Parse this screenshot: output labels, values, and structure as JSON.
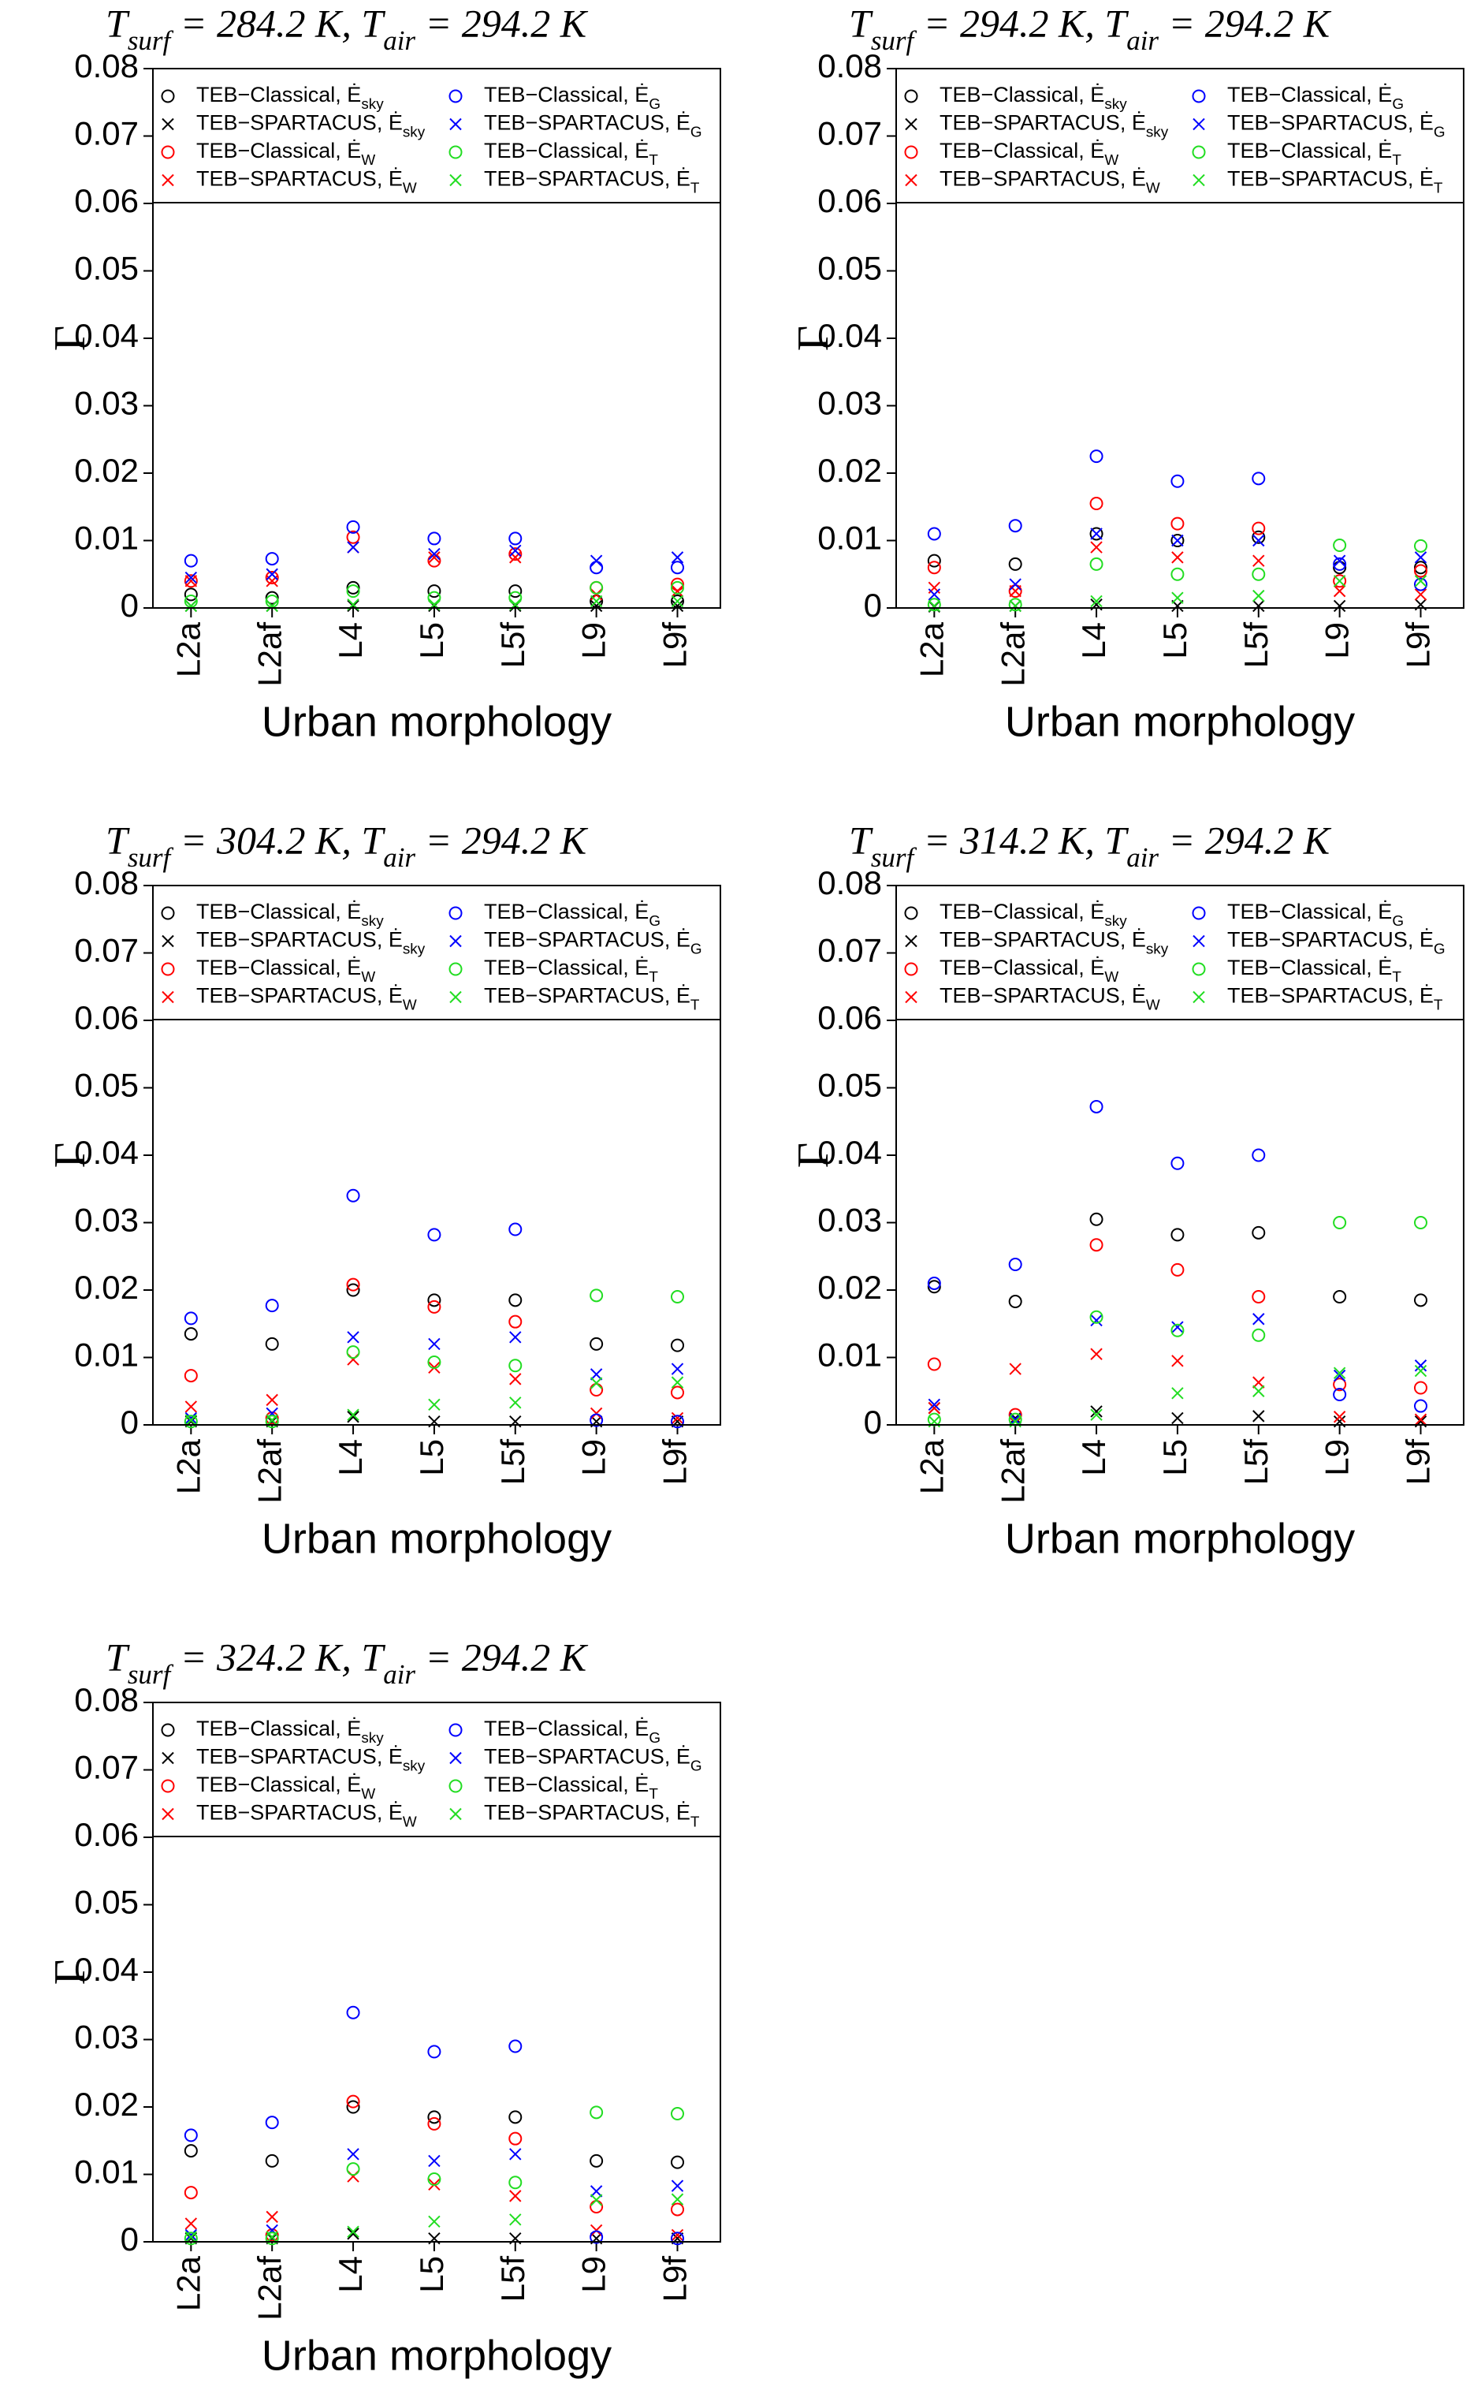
{
  "chart_data": [
    {
      "type": "scatter",
      "title": "T_surf = 284.2 K, T_air = 294.2 K",
      "xlabel": "Urban morphology",
      "ylabel": "Γ",
      "categories": [
        "L2a",
        "L2af",
        "L4",
        "L5",
        "L5f",
        "L9",
        "L9f"
      ],
      "ylim": [
        0,
        0.08
      ],
      "yticks": [
        0,
        0.01,
        0.02,
        0.03,
        0.04,
        0.05,
        0.06,
        0.07,
        0.08
      ],
      "legend": "top",
      "series": [
        {
          "name": "TEB−Classical, Ė_sky",
          "color": "#000000",
          "marker": "o",
          "values": [
            0.002,
            0.0015,
            0.003,
            0.0025,
            0.0025,
            0.001,
            0.001
          ]
        },
        {
          "name": "TEB−SPARTACUS, Ė_sky",
          "color": "#000000",
          "marker": "x",
          "values": [
            0.0003,
            0.0003,
            0.0003,
            0.0003,
            0.0003,
            0.0003,
            0.0003
          ]
        },
        {
          "name": "TEB−Classical, Ė_W",
          "color": "#ff0000",
          "marker": "o",
          "values": [
            0.004,
            0.0045,
            0.0105,
            0.007,
            0.008,
            0.003,
            0.0035
          ]
        },
        {
          "name": "TEB−SPARTACUS, Ė_W",
          "color": "#ff0000",
          "marker": "x",
          "values": [
            0.004,
            0.004,
            0.009,
            0.0075,
            0.0075,
            0.002,
            0.0025
          ]
        },
        {
          "name": "TEB−Classical, Ė_G",
          "color": "#0000ff",
          "marker": "o",
          "values": [
            0.007,
            0.0073,
            0.012,
            0.0103,
            0.0103,
            0.006,
            0.006
          ]
        },
        {
          "name": "TEB−SPARTACUS, Ė_G",
          "color": "#0000ff",
          "marker": "x",
          "values": [
            0.0045,
            0.005,
            0.009,
            0.008,
            0.0085,
            0.007,
            0.0075
          ]
        },
        {
          "name": "TEB−Classical, Ė_T",
          "color": "#22dd22",
          "marker": "o",
          "values": [
            0.001,
            0.001,
            0.0025,
            0.0015,
            0.0015,
            0.003,
            0.003
          ]
        },
        {
          "name": "TEB−SPARTACUS, Ė_T",
          "color": "#22dd22",
          "marker": "x",
          "values": [
            0.0003,
            0.0003,
            0.0005,
            0.0005,
            0.0005,
            0.001,
            0.001
          ]
        }
      ]
    },
    {
      "type": "scatter",
      "title": "T_surf = 294.2 K, T_air = 294.2 K",
      "xlabel": "Urban morphology",
      "ylabel": "Γ",
      "categories": [
        "L2a",
        "L2af",
        "L4",
        "L5",
        "L5f",
        "L9",
        "L9f"
      ],
      "ylim": [
        0,
        0.08
      ],
      "yticks": [
        0,
        0.01,
        0.02,
        0.03,
        0.04,
        0.05,
        0.06,
        0.07,
        0.08
      ],
      "legend": "top",
      "series": [
        {
          "name": "TEB−Classical, Ė_sky",
          "color": "#000000",
          "marker": "o",
          "values": [
            0.007,
            0.0065,
            0.011,
            0.01,
            0.0105,
            0.006,
            0.006
          ]
        },
        {
          "name": "TEB−SPARTACUS, Ė_sky",
          "color": "#000000",
          "marker": "x",
          "values": [
            0.0002,
            0.0003,
            0.0005,
            0.0003,
            0.0003,
            0.0003,
            0.0005
          ]
        },
        {
          "name": "TEB−Classical, Ė_W",
          "color": "#ff0000",
          "marker": "o",
          "values": [
            0.006,
            0.0025,
            0.0155,
            0.0125,
            0.0118,
            0.004,
            0.0055
          ]
        },
        {
          "name": "TEB−SPARTACUS, Ė_W",
          "color": "#ff0000",
          "marker": "x",
          "values": [
            0.003,
            0.0025,
            0.009,
            0.0075,
            0.007,
            0.0025,
            0.002
          ]
        },
        {
          "name": "TEB−Classical, Ė_G",
          "color": "#0000ff",
          "marker": "o",
          "values": [
            0.011,
            0.0122,
            0.0225,
            0.0188,
            0.0192,
            0.0065,
            0.0035
          ]
        },
        {
          "name": "TEB−SPARTACUS, Ė_G",
          "color": "#0000ff",
          "marker": "x",
          "values": [
            0.002,
            0.0035,
            0.011,
            0.01,
            0.01,
            0.007,
            0.0075
          ]
        },
        {
          "name": "TEB−Classical, Ė_T",
          "color": "#22dd22",
          "marker": "o",
          "values": [
            0.0005,
            0.0005,
            0.0065,
            0.005,
            0.005,
            0.0093,
            0.0092
          ]
        },
        {
          "name": "TEB−SPARTACUS, Ė_T",
          "color": "#22dd22",
          "marker": "x",
          "values": [
            0.0003,
            0.0003,
            0.001,
            0.0015,
            0.0018,
            0.004,
            0.004
          ]
        }
      ]
    },
    {
      "type": "scatter",
      "title": "T_surf = 304.2 K, T_air = 294.2 K",
      "xlabel": "Urban morphology",
      "ylabel": "Γ",
      "categories": [
        "L2a",
        "L2af",
        "L4",
        "L5",
        "L5f",
        "L9",
        "L9f"
      ],
      "ylim": [
        0,
        0.08
      ],
      "yticks": [
        0,
        0.01,
        0.02,
        0.03,
        0.04,
        0.05,
        0.06,
        0.07,
        0.08
      ],
      "legend": "top",
      "series": [
        {
          "name": "TEB−Classical, Ė_sky",
          "color": "#000000",
          "marker": "o",
          "values": [
            0.0135,
            0.012,
            0.02,
            0.0185,
            0.0185,
            0.012,
            0.0118
          ]
        },
        {
          "name": "TEB−SPARTACUS, Ė_sky",
          "color": "#000000",
          "marker": "x",
          "values": [
            0.0005,
            0.0005,
            0.0012,
            0.0005,
            0.0005,
            0.0005,
            0.0005
          ]
        },
        {
          "name": "TEB−Classical, Ė_W",
          "color": "#ff0000",
          "marker": "o",
          "values": [
            0.0073,
            0.001,
            0.0208,
            0.0175,
            0.0153,
            0.0052,
            0.0048
          ]
        },
        {
          "name": "TEB−SPARTACUS, Ė_W",
          "color": "#ff0000",
          "marker": "x",
          "values": [
            0.0027,
            0.0037,
            0.0097,
            0.0085,
            0.0068,
            0.0017,
            0.001
          ]
        },
        {
          "name": "TEB−Classical, Ė_G",
          "color": "#0000ff",
          "marker": "o",
          "values": [
            0.0158,
            0.0177,
            0.034,
            0.0282,
            0.029,
            0.0007,
            0.0005
          ]
        },
        {
          "name": "TEB−SPARTACUS, Ė_G",
          "color": "#0000ff",
          "marker": "x",
          "values": [
            0.001,
            0.0017,
            0.013,
            0.012,
            0.013,
            0.0075,
            0.0083
          ]
        },
        {
          "name": "TEB−Classical, Ė_T",
          "color": "#22dd22",
          "marker": "o",
          "values": [
            0.0005,
            0.0005,
            0.0108,
            0.0093,
            0.0088,
            0.0192,
            0.019
          ]
        },
        {
          "name": "TEB−SPARTACUS, Ė_T",
          "color": "#22dd22",
          "marker": "x",
          "values": [
            0.0007,
            0.0007,
            0.0015,
            0.003,
            0.0033,
            0.0062,
            0.0063
          ]
        }
      ]
    },
    {
      "type": "scatter",
      "title": "T_surf = 314.2 K, T_air = 294.2 K",
      "xlabel": "Urban morphology",
      "ylabel": "Γ",
      "categories": [
        "L2a",
        "L2af",
        "L4",
        "L5",
        "L5f",
        "L9",
        "L9f"
      ],
      "ylim": [
        0,
        0.08
      ],
      "yticks": [
        0,
        0.01,
        0.02,
        0.03,
        0.04,
        0.05,
        0.06,
        0.07,
        0.08
      ],
      "legend": "top",
      "series": [
        {
          "name": "TEB−Classical, Ė_sky",
          "color": "#000000",
          "marker": "o",
          "values": [
            0.0205,
            0.0183,
            0.0305,
            0.0282,
            0.0285,
            0.019,
            0.0185
          ]
        },
        {
          "name": "TEB−SPARTACUS, Ė_sky",
          "color": "#000000",
          "marker": "x",
          "values": [
            0.0025,
            0.001,
            0.002,
            0.001,
            0.0013,
            0.0005,
            0.0005
          ]
        },
        {
          "name": "TEB−Classical, Ė_W",
          "color": "#ff0000",
          "marker": "o",
          "values": [
            0.009,
            0.0015,
            0.0267,
            0.023,
            0.019,
            0.006,
            0.0055
          ]
        },
        {
          "name": "TEB−SPARTACUS, Ė_W",
          "color": "#ff0000",
          "marker": "x",
          "values": [
            0.0025,
            0.0083,
            0.0105,
            0.0095,
            0.0063,
            0.0012,
            0.0008
          ]
        },
        {
          "name": "TEB−Classical, Ė_G",
          "color": "#0000ff",
          "marker": "o",
          "values": [
            0.021,
            0.0238,
            0.0472,
            0.0388,
            0.04,
            0.0045,
            0.0028
          ]
        },
        {
          "name": "TEB−SPARTACUS, Ė_G",
          "color": "#0000ff",
          "marker": "x",
          "values": [
            0.003,
            0.0008,
            0.0155,
            0.0145,
            0.0157,
            0.0073,
            0.0088
          ]
        },
        {
          "name": "TEB−Classical, Ė_T",
          "color": "#22dd22",
          "marker": "o",
          "values": [
            0.0008,
            0.0008,
            0.016,
            0.014,
            0.0133,
            0.03,
            0.03
          ]
        },
        {
          "name": "TEB−SPARTACUS, Ė_T",
          "color": "#22dd22",
          "marker": "x",
          "values": [
            0.0005,
            0.0005,
            0.0015,
            0.0047,
            0.005,
            0.0077,
            0.008
          ]
        }
      ]
    },
    {
      "type": "scatter",
      "title": "T_surf = 324.2 K, T_air = 294.2 K",
      "xlabel": "Urban morphology",
      "ylabel": "Γ",
      "categories": [
        "L2a",
        "L2af",
        "L4",
        "L5",
        "L5f",
        "L9",
        "L9f"
      ],
      "ylim": [
        0,
        0.08
      ],
      "yticks": [
        0,
        0.01,
        0.02,
        0.03,
        0.04,
        0.05,
        0.06,
        0.07,
        0.08
      ],
      "legend": "top",
      "series": [
        {
          "name": "TEB−Classical, Ė_sky",
          "color": "#000000",
          "marker": "o",
          "values": [
            0.0135,
            0.012,
            0.02,
            0.0185,
            0.0185,
            0.012,
            0.0118
          ]
        },
        {
          "name": "TEB−SPARTACUS, Ė_sky",
          "color": "#000000",
          "marker": "x",
          "values": [
            0.0005,
            0.0005,
            0.0012,
            0.0005,
            0.0005,
            0.0005,
            0.0005
          ]
        },
        {
          "name": "TEB−Classical, Ė_W",
          "color": "#ff0000",
          "marker": "o",
          "values": [
            0.0073,
            0.001,
            0.0208,
            0.0175,
            0.0153,
            0.0052,
            0.0048
          ]
        },
        {
          "name": "TEB−SPARTACUS, Ė_W",
          "color": "#ff0000",
          "marker": "x",
          "values": [
            0.0027,
            0.0037,
            0.0097,
            0.0085,
            0.0068,
            0.0017,
            0.001
          ]
        },
        {
          "name": "TEB−Classical, Ė_G",
          "color": "#0000ff",
          "marker": "o",
          "values": [
            0.0158,
            0.0177,
            0.034,
            0.0282,
            0.029,
            0.0007,
            0.0005
          ]
        },
        {
          "name": "TEB−SPARTACUS, Ė_G",
          "color": "#0000ff",
          "marker": "x",
          "values": [
            0.001,
            0.0017,
            0.013,
            0.012,
            0.013,
            0.0075,
            0.0083
          ]
        },
        {
          "name": "TEB−Classical, Ė_T",
          "color": "#22dd22",
          "marker": "o",
          "values": [
            0.0005,
            0.0005,
            0.0108,
            0.0093,
            0.0088,
            0.0192,
            0.019
          ]
        },
        {
          "name": "TEB−SPARTACUS, Ė_T",
          "color": "#22dd22",
          "marker": "x",
          "values": [
            0.0007,
            0.0007,
            0.0015,
            0.003,
            0.0033,
            0.0062,
            0.0063
          ]
        }
      ]
    }
  ]
}
